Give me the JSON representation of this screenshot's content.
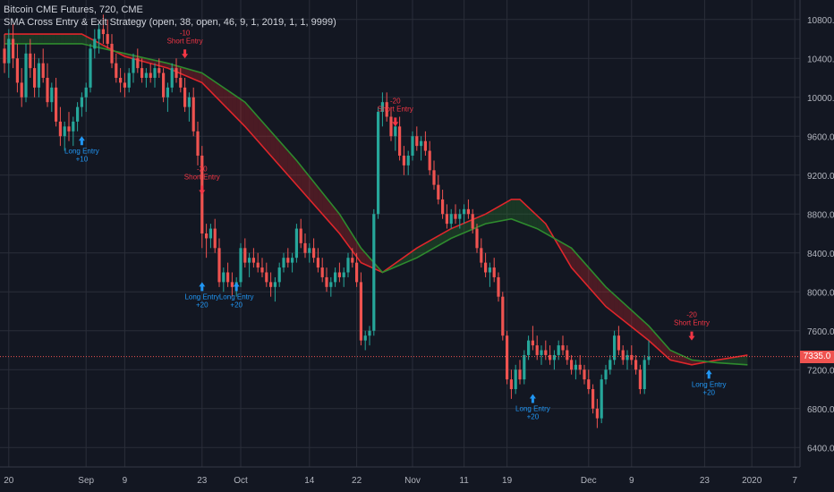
{
  "legend": {
    "line1": "Bitcoin CME Futures, 720, CME",
    "line2": "SMA Cross Entry & Exit Strategy (open, 38, open, 46, 9, 1, 2019, 1, 1, 9999)"
  },
  "colors": {
    "background": "#131722",
    "grid": "#2a2e39",
    "up": "#26a69a",
    "down": "#ef5350",
    "sma_fast": "#e0262b",
    "sma_slow": "#2e8b2e",
    "long_signal": "#2196f3",
    "short_signal": "#f23645",
    "axis_text": "#b2b5be",
    "price_line": "#ef5350"
  },
  "chart_data": {
    "type": "candlestick",
    "title": "Bitcoin CME Futures, 720, CME",
    "grid": true,
    "y_axis_side": "right",
    "ylim": [
      6200,
      11000
    ],
    "yticks": [
      6400,
      6800,
      7200,
      7600,
      8000,
      8400,
      8800,
      9200,
      9600,
      10000,
      10400,
      10800
    ],
    "x_tick_labels": [
      {
        "label": "20",
        "idx": 1
      },
      {
        "label": "Sep",
        "idx": 19
      },
      {
        "label": "9",
        "idx": 28
      },
      {
        "label": "23",
        "idx": 46
      },
      {
        "label": "Oct",
        "idx": 55
      },
      {
        "label": "14",
        "idx": 71
      },
      {
        "label": "22",
        "idx": 82
      },
      {
        "label": "Nov",
        "idx": 95
      },
      {
        "label": "11",
        "idx": 107
      },
      {
        "label": "19",
        "idx": 117
      },
      {
        "label": "Dec",
        "idx": 136
      },
      {
        "label": "9",
        "idx": 146
      },
      {
        "label": "23",
        "idx": 163
      },
      {
        "label": "2020",
        "idx": 174
      },
      {
        "label": "7",
        "idx": 184
      }
    ],
    "last_price": {
      "value": 7335.0,
      "label": "7335.0"
    },
    "candles": [
      [
        10500,
        10650,
        10250,
        10350
      ],
      [
        10350,
        10700,
        10200,
        10600
      ],
      [
        10600,
        10750,
        10300,
        10400
      ],
      [
        10400,
        10550,
        10050,
        10150
      ],
      [
        10150,
        10300,
        9900,
        10000
      ],
      [
        10000,
        10550,
        9950,
        10450
      ],
      [
        10450,
        10600,
        10200,
        10300
      ],
      [
        10300,
        10450,
        10000,
        10100
      ],
      [
        10100,
        10400,
        10000,
        10350
      ],
      [
        10350,
        10500,
        10150,
        10200
      ],
      [
        10200,
        10350,
        9900,
        9950
      ],
      [
        9950,
        10150,
        9850,
        10100
      ],
      [
        10100,
        10200,
        9700,
        9750
      ],
      [
        9750,
        9900,
        9500,
        9600
      ],
      [
        9600,
        9750,
        9450,
        9700
      ],
      [
        9700,
        9850,
        9550,
        9650
      ],
      [
        9650,
        9800,
        9500,
        9750
      ],
      [
        9750,
        9950,
        9650,
        9900
      ],
      [
        9900,
        10050,
        9800,
        10000
      ],
      [
        10000,
        10150,
        9850,
        10100
      ],
      [
        10100,
        10550,
        10050,
        10500
      ],
      [
        10500,
        10700,
        10400,
        10600
      ],
      [
        10600,
        10750,
        10450,
        10700
      ],
      [
        10700,
        10850,
        10550,
        10650
      ],
      [
        10650,
        10800,
        10500,
        10550
      ],
      [
        10550,
        10650,
        10300,
        10350
      ],
      [
        10350,
        10450,
        10150,
        10200
      ],
      [
        10200,
        10300,
        10050,
        10150
      ],
      [
        10150,
        10250,
        10000,
        10100
      ],
      [
        10100,
        10300,
        10050,
        10250
      ],
      [
        10250,
        10450,
        10150,
        10400
      ],
      [
        10400,
        10500,
        10250,
        10300
      ],
      [
        10300,
        10400,
        10150,
        10200
      ],
      [
        10200,
        10300,
        10100,
        10250
      ],
      [
        10250,
        10350,
        10150,
        10200
      ],
      [
        10200,
        10350,
        10100,
        10300
      ],
      [
        10300,
        10400,
        10200,
        10250
      ],
      [
        10250,
        10300,
        9950,
        10000
      ],
      [
        10000,
        10150,
        9850,
        10100
      ],
      [
        10100,
        10350,
        10050,
        10300
      ],
      [
        10300,
        10400,
        10150,
        10200
      ],
      [
        10200,
        10300,
        10050,
        10100
      ],
      [
        10100,
        10200,
        9850,
        9900
      ],
      [
        9900,
        10050,
        9750,
        10000
      ],
      [
        10000,
        10100,
        9600,
        9650
      ],
      [
        9650,
        9750,
        9300,
        9400
      ],
      [
        9400,
        9500,
        8450,
        8600
      ],
      [
        8600,
        8700,
        8350,
        8550
      ],
      [
        8550,
        8700,
        8450,
        8650
      ],
      [
        8650,
        8750,
        8400,
        8450
      ],
      [
        8450,
        8550,
        8050,
        8100
      ],
      [
        8100,
        8250,
        8000,
        8200
      ],
      [
        8200,
        8300,
        8050,
        8100
      ],
      [
        8100,
        8200,
        7950,
        8050
      ],
      [
        8050,
        8150,
        7950,
        8100
      ],
      [
        8100,
        8500,
        8050,
        8450
      ],
      [
        8450,
        8550,
        8250,
        8300
      ],
      [
        8300,
        8400,
        8150,
        8350
      ],
      [
        8350,
        8450,
        8250,
        8300
      ],
      [
        8300,
        8400,
        8200,
        8250
      ],
      [
        8250,
        8350,
        8150,
        8200
      ],
      [
        8200,
        8300,
        8050,
        8100
      ],
      [
        8100,
        8200,
        7950,
        8050
      ],
      [
        8050,
        8150,
        7900,
        8100
      ],
      [
        8100,
        8300,
        8050,
        8250
      ],
      [
        8250,
        8400,
        8200,
        8350
      ],
      [
        8350,
        8450,
        8250,
        8300
      ],
      [
        8300,
        8400,
        8200,
        8350
      ],
      [
        8350,
        8700,
        8300,
        8650
      ],
      [
        8650,
        8750,
        8450,
        8500
      ],
      [
        8500,
        8600,
        8350,
        8400
      ],
      [
        8400,
        8500,
        8300,
        8450
      ],
      [
        8450,
        8550,
        8300,
        8350
      ],
      [
        8350,
        8450,
        8200,
        8250
      ],
      [
        8250,
        8350,
        8100,
        8150
      ],
      [
        8150,
        8250,
        8000,
        8050
      ],
      [
        8050,
        8150,
        7950,
        8100
      ],
      [
        8100,
        8250,
        8050,
        8200
      ],
      [
        8200,
        8300,
        8100,
        8150
      ],
      [
        8150,
        8250,
        8050,
        8200
      ],
      [
        8200,
        8400,
        8150,
        8350
      ],
      [
        8350,
        8450,
        8250,
        8300
      ],
      [
        8300,
        8400,
        8050,
        8100
      ],
      [
        8100,
        8200,
        7450,
        7500
      ],
      [
        7500,
        7600,
        7400,
        7550
      ],
      [
        7550,
        7650,
        7450,
        7600
      ],
      [
        7600,
        8850,
        7550,
        8800
      ],
      [
        8800,
        9900,
        8750,
        9850
      ],
      [
        9850,
        10050,
        9700,
        9950
      ],
      [
        9950,
        10050,
        9750,
        9800
      ],
      [
        9800,
        9900,
        9550,
        9600
      ],
      [
        9600,
        9750,
        9450,
        9700
      ],
      [
        9700,
        9800,
        9350,
        9400
      ],
      [
        9400,
        9500,
        9200,
        9300
      ],
      [
        9300,
        9450,
        9200,
        9400
      ],
      [
        9400,
        9650,
        9350,
        9600
      ],
      [
        9600,
        9700,
        9450,
        9500
      ],
      [
        9500,
        9600,
        9350,
        9550
      ],
      [
        9550,
        9650,
        9400,
        9450
      ],
      [
        9450,
        9550,
        9200,
        9250
      ],
      [
        9250,
        9350,
        9050,
        9100
      ],
      [
        9100,
        9200,
        8900,
        8950
      ],
      [
        8950,
        9050,
        8750,
        8800
      ],
      [
        8800,
        8900,
        8650,
        8700
      ],
      [
        8700,
        8850,
        8650,
        8800
      ],
      [
        8800,
        8900,
        8700,
        8750
      ],
      [
        8750,
        8850,
        8650,
        8800
      ],
      [
        8800,
        8900,
        8700,
        8850
      ],
      [
        8850,
        8950,
        8750,
        8800
      ],
      [
        8800,
        8850,
        8600,
        8650
      ],
      [
        8650,
        8700,
        8400,
        8450
      ],
      [
        8450,
        8550,
        8250,
        8300
      ],
      [
        8300,
        8400,
        8150,
        8200
      ],
      [
        8200,
        8300,
        8050,
        8250
      ],
      [
        8250,
        8350,
        8100,
        8150
      ],
      [
        8150,
        8200,
        7900,
        7950
      ],
      [
        7950,
        8000,
        7500,
        7550
      ],
      [
        7550,
        7600,
        7050,
        7100
      ],
      [
        7100,
        7200,
        6900,
        7000
      ],
      [
        7000,
        7250,
        6950,
        7200
      ],
      [
        7200,
        7300,
        7050,
        7100
      ],
      [
        7100,
        7400,
        7050,
        7350
      ],
      [
        7350,
        7550,
        7300,
        7500
      ],
      [
        7500,
        7650,
        7400,
        7450
      ],
      [
        7450,
        7550,
        7300,
        7350
      ],
      [
        7350,
        7450,
        7250,
        7400
      ],
      [
        7400,
        7500,
        7300,
        7350
      ],
      [
        7350,
        7450,
        7250,
        7300
      ],
      [
        7300,
        7400,
        7200,
        7350
      ],
      [
        7350,
        7500,
        7300,
        7450
      ],
      [
        7450,
        7550,
        7350,
        7400
      ],
      [
        7400,
        7450,
        7250,
        7300
      ],
      [
        7300,
        7350,
        7150,
        7200
      ],
      [
        7200,
        7300,
        7100,
        7250
      ],
      [
        7250,
        7350,
        7150,
        7200
      ],
      [
        7200,
        7250,
        7050,
        7100
      ],
      [
        7100,
        7200,
        6950,
        7000
      ],
      [
        7000,
        7050,
        6750,
        6800
      ],
      [
        6800,
        6900,
        6600,
        6700
      ],
      [
        6700,
        7150,
        6650,
        7100
      ],
      [
        7100,
        7250,
        7050,
        7200
      ],
      [
        7200,
        7350,
        7150,
        7300
      ],
      [
        7300,
        7600,
        7250,
        7550
      ],
      [
        7550,
        7650,
        7350,
        7400
      ],
      [
        7400,
        7450,
        7250,
        7300
      ],
      [
        7300,
        7400,
        7200,
        7350
      ],
      [
        7350,
        7450,
        7250,
        7300
      ],
      [
        7300,
        7350,
        7150,
        7200
      ],
      [
        7200,
        7250,
        6950,
        7000
      ],
      [
        7000,
        7350,
        6950,
        7300
      ],
      [
        7300,
        7500,
        7250,
        7335
      ]
    ],
    "series": [
      {
        "name": "SMA 38",
        "key": "sma_fast",
        "points": [
          [
            0,
            10650
          ],
          [
            18,
            10650
          ],
          [
            28,
            10420
          ],
          [
            38,
            10300
          ],
          [
            46,
            10150
          ],
          [
            56,
            9700
          ],
          [
            68,
            9100
          ],
          [
            78,
            8600
          ],
          [
            83,
            8300
          ],
          [
            88,
            8200
          ],
          [
            96,
            8450
          ],
          [
            104,
            8650
          ],
          [
            112,
            8800
          ],
          [
            118,
            8950
          ],
          [
            120,
            8950
          ],
          [
            126,
            8700
          ],
          [
            132,
            8250
          ],
          [
            140,
            7850
          ],
          [
            150,
            7500
          ],
          [
            155,
            7300
          ],
          [
            160,
            7250
          ],
          [
            166,
            7300
          ],
          [
            173,
            7350
          ]
        ]
      },
      {
        "name": "SMA 46",
        "key": "sma_slow",
        "points": [
          [
            0,
            10550
          ],
          [
            18,
            10550
          ],
          [
            28,
            10450
          ],
          [
            38,
            10350
          ],
          [
            46,
            10250
          ],
          [
            56,
            9950
          ],
          [
            68,
            9350
          ],
          [
            78,
            8800
          ],
          [
            83,
            8450
          ],
          [
            88,
            8200
          ],
          [
            96,
            8350
          ],
          [
            104,
            8550
          ],
          [
            112,
            8700
          ],
          [
            118,
            8750
          ],
          [
            124,
            8650
          ],
          [
            132,
            8450
          ],
          [
            140,
            8050
          ],
          [
            150,
            7650
          ],
          [
            155,
            7400
          ],
          [
            160,
            7300
          ],
          [
            166,
            7270
          ],
          [
            173,
            7250
          ]
        ]
      }
    ],
    "signals": [
      {
        "type": "long",
        "idx": 18,
        "price": 9600,
        "text": "Long Entry",
        "qty": "+10"
      },
      {
        "type": "short",
        "idx": 42,
        "price": 10400,
        "text": "Short Entry",
        "qty": "-10"
      },
      {
        "type": "short",
        "idx": 46,
        "price": 9000,
        "text": "Short Entry",
        "qty": "-20"
      },
      {
        "type": "long",
        "idx": 46,
        "price": 8100,
        "text": "Long Entry",
        "qty": "+20"
      },
      {
        "type": "long",
        "idx": 54,
        "price": 8100,
        "text": "Long Entry",
        "qty": "+20"
      },
      {
        "type": "short",
        "idx": 91,
        "price": 9700,
        "text": "Short Entry",
        "qty": "-20"
      },
      {
        "type": "long",
        "idx": 123,
        "price": 6950,
        "text": "Long Entry",
        "qty": "+20"
      },
      {
        "type": "short",
        "idx": 160,
        "price": 7500,
        "text": "Short Entry",
        "qty": "-20"
      },
      {
        "type": "long",
        "idx": 164,
        "price": 7200,
        "text": "Long Entry",
        "qty": "+20"
      }
    ]
  }
}
